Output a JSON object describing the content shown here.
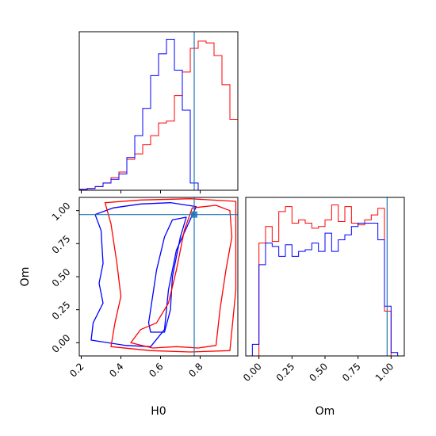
{
  "chart_data": {
    "type": "corner",
    "parameters": [
      "H0",
      "Om"
    ],
    "truth": {
      "H0": 0.77,
      "Om": 0.97
    },
    "truth_color": "#1f77b4",
    "series": [
      {
        "color": "#ff0000"
      },
      {
        "color": "#0000ff"
      }
    ],
    "panels": [
      {
        "id": "h0-marginal",
        "type": "histogram",
        "xlim": [
          0.19,
          0.99
        ],
        "bin_edges": [
          0.19,
          0.23,
          0.27,
          0.31,
          0.35,
          0.39,
          0.43,
          0.47,
          0.51,
          0.55,
          0.59,
          0.63,
          0.67,
          0.71,
          0.75,
          0.79,
          0.83,
          0.87,
          0.91,
          0.95,
          0.99
        ],
        "series": [
          {
            "color": "#ff0000",
            "counts": [
              0.5,
              0.8,
              2,
              4,
              7,
              10,
              17,
              20,
              25,
              30,
              37,
              38,
              52,
              65,
              78,
              82,
              81,
              74,
              58,
              39
            ]
          },
          {
            "color": "#0000ff",
            "counts": [
              0.5,
              1,
              2,
              4,
              6,
              9,
              18,
              30,
              45,
              63,
              75,
              83,
              66,
              44,
              4,
              0,
              0,
              0,
              0,
              0
            ]
          }
        ]
      },
      {
        "id": "h0-om-joint",
        "type": "contour",
        "xlim": [
          0.19,
          0.99
        ],
        "ylim": [
          -0.1,
          1.1
        ],
        "xticks": [
          0.2,
          0.4,
          0.6,
          0.8
        ],
        "xtick_labels": [
          "0.2",
          "0.4",
          "0.6",
          "0.8"
        ],
        "yticks": [
          0.0,
          0.25,
          0.5,
          0.75,
          1.0
        ],
        "ytick_labels": [
          "0.00",
          "0.25",
          "0.50",
          "0.75",
          "1.00"
        ],
        "xlabel": "H0",
        "ylabel": "Om",
        "contours": [
          {
            "color": "#0000ff",
            "points": [
              [
                0.55,
                0.08
              ],
              [
                0.62,
                0.08
              ],
              [
                0.65,
                0.25
              ],
              [
                0.66,
                0.5
              ],
              [
                0.7,
                0.8
              ],
              [
                0.73,
                0.95
              ],
              [
                0.66,
                0.93
              ],
              [
                0.62,
                0.8
              ],
              [
                0.58,
                0.55
              ],
              [
                0.56,
                0.35
              ],
              [
                0.54,
                0.15
              ]
            ]
          },
          {
            "color": "#0000ff",
            "points": [
              [
                0.25,
                0.02
              ],
              [
                0.42,
                -0.02
              ],
              [
                0.55,
                -0.03
              ],
              [
                0.62,
                0.1
              ],
              [
                0.64,
                0.4
              ],
              [
                0.68,
                0.7
              ],
              [
                0.74,
                0.9
              ],
              [
                0.78,
                1.03
              ],
              [
                0.65,
                1.06
              ],
              [
                0.5,
                1.05
              ],
              [
                0.36,
                1.02
              ],
              [
                0.27,
                0.97
              ],
              [
                0.3,
                0.85
              ],
              [
                0.31,
                0.6
              ],
              [
                0.29,
                0.45
              ],
              [
                0.31,
                0.3
              ],
              [
                0.26,
                0.15
              ]
            ]
          },
          {
            "color": "#ff0000",
            "points": [
              [
                0.45,
                0.0
              ],
              [
                0.56,
                -0.04
              ],
              [
                0.68,
                -0.03
              ],
              [
                0.79,
                -0.04
              ],
              [
                0.88,
                -0.02
              ],
              [
                0.9,
                0.25
              ],
              [
                0.93,
                0.55
              ],
              [
                0.96,
                0.8
              ],
              [
                0.95,
                1.0
              ],
              [
                0.88,
                1.04
              ],
              [
                0.76,
                1.02
              ],
              [
                0.72,
                0.85
              ],
              [
                0.68,
                0.55
              ],
              [
                0.64,
                0.3
              ],
              [
                0.58,
                0.15
              ],
              [
                0.5,
                0.1
              ]
            ]
          },
          {
            "color": "#ff0000",
            "points": [
              [
                0.35,
                -0.03
              ],
              [
                0.55,
                -0.06
              ],
              [
                0.75,
                -0.07
              ],
              [
                0.95,
                -0.06
              ],
              [
                0.98,
                0.4
              ],
              [
                0.98,
                1.07
              ],
              [
                0.75,
                1.09
              ],
              [
                0.5,
                1.08
              ],
              [
                0.32,
                1.06
              ],
              [
                0.35,
                0.9
              ],
              [
                0.38,
                0.6
              ],
              [
                0.4,
                0.35
              ],
              [
                0.37,
                0.15
              ]
            ]
          }
        ]
      },
      {
        "id": "om-marginal",
        "type": "histogram",
        "xlim": [
          -0.1,
          1.1
        ],
        "xticks": [
          0.0,
          0.25,
          0.5,
          0.75,
          1.0
        ],
        "xtick_labels": [
          "0.00",
          "0.25",
          "0.50",
          "0.75",
          "1.00"
        ],
        "xlabel": "Om",
        "bin_edges": [
          -0.05,
          0.0,
          0.05,
          0.1,
          0.15,
          0.2,
          0.25,
          0.3,
          0.35,
          0.4,
          0.45,
          0.5,
          0.55,
          0.6,
          0.65,
          0.7,
          0.75,
          0.8,
          0.85,
          0.9,
          0.95,
          1.0,
          1.05
        ],
        "series": [
          {
            "color": "#ff0000",
            "counts": [
              0,
              68,
              78,
              69,
              87,
              90,
              80,
              82,
              80,
              77,
              78,
              82,
              91,
              81,
              90,
              80,
              79,
              82,
              85,
              89,
              27,
              0
            ]
          },
          {
            "color": "#0000ff",
            "counts": [
              7,
              55,
              68,
              66,
              60,
              67,
              60,
              63,
              64,
              68,
              63,
              74,
              63,
              70,
              73,
              78,
              80,
              80,
              80,
              70,
              30,
              2
            ]
          }
        ]
      }
    ]
  }
}
